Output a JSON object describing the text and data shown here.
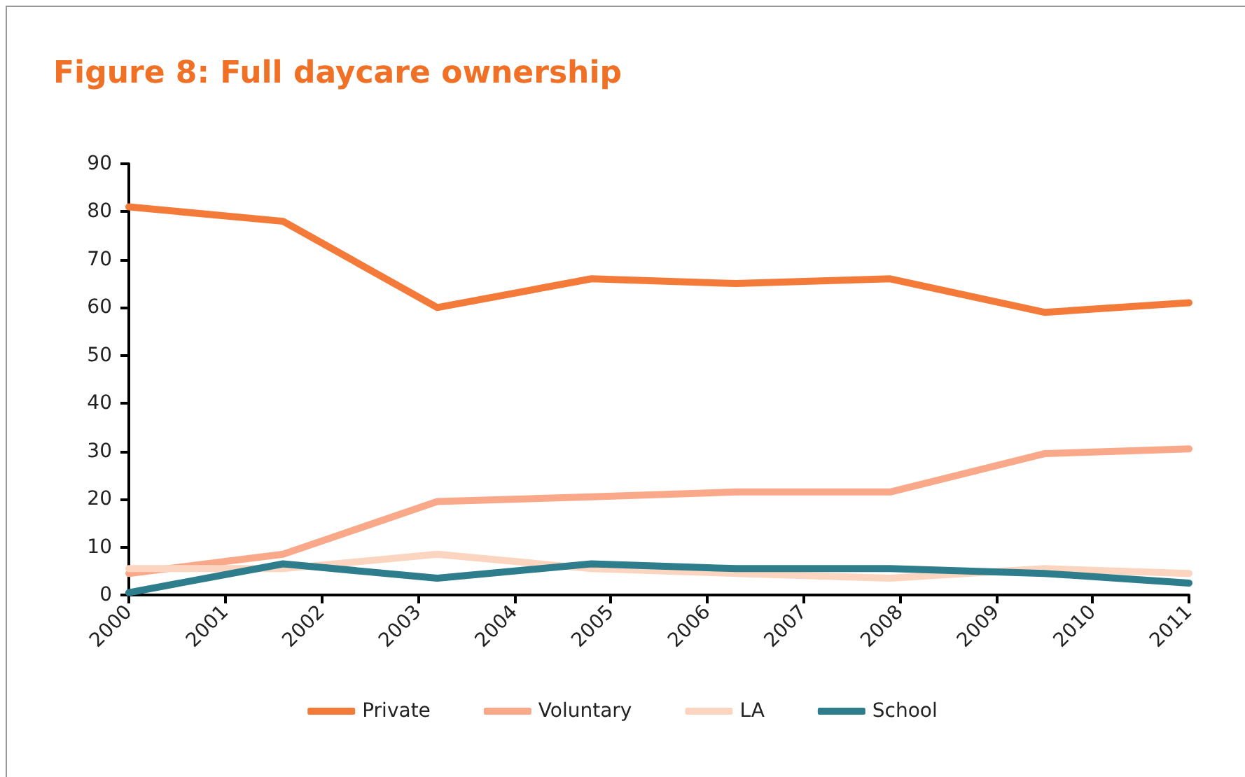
{
  "chart_data": {
    "type": "line",
    "title": "Figure 8: Full daycare ownership",
    "x": [
      2000,
      2001.6,
      2003.2,
      2004.8,
      2006.3,
      2007.9,
      2009.5,
      2011
    ],
    "xlim": [
      2000,
      2011
    ],
    "xticks": [
      2000,
      2001,
      2002,
      2003,
      2004,
      2005,
      2006,
      2007,
      2008,
      2009,
      2010,
      2011
    ],
    "ylim": [
      0,
      90
    ],
    "yticks": [
      0,
      10,
      20,
      30,
      40,
      50,
      60,
      70,
      80,
      90
    ],
    "series": [
      {
        "name": "Private",
        "color": "#f47a3a",
        "values": [
          81,
          78,
          60,
          66,
          65,
          66,
          59,
          61
        ]
      },
      {
        "name": "Voluntary",
        "color": "#f9a98a",
        "values": [
          4.5,
          8.5,
          19.5,
          20.5,
          21.5,
          21.5,
          29.5,
          30.5
        ]
      },
      {
        "name": "LA",
        "color": "#fcd5c0",
        "values": [
          5.5,
          5.5,
          8.5,
          5.5,
          4.5,
          3.5,
          5.5,
          4.5
        ]
      },
      {
        "name": "School",
        "color": "#2e7d8c",
        "values": [
          0.5,
          6.5,
          3.5,
          6.5,
          5.5,
          5.5,
          4.5,
          2.5
        ]
      }
    ],
    "grid": false,
    "legend": "bottom",
    "marker": "none",
    "line_style": "solid"
  }
}
